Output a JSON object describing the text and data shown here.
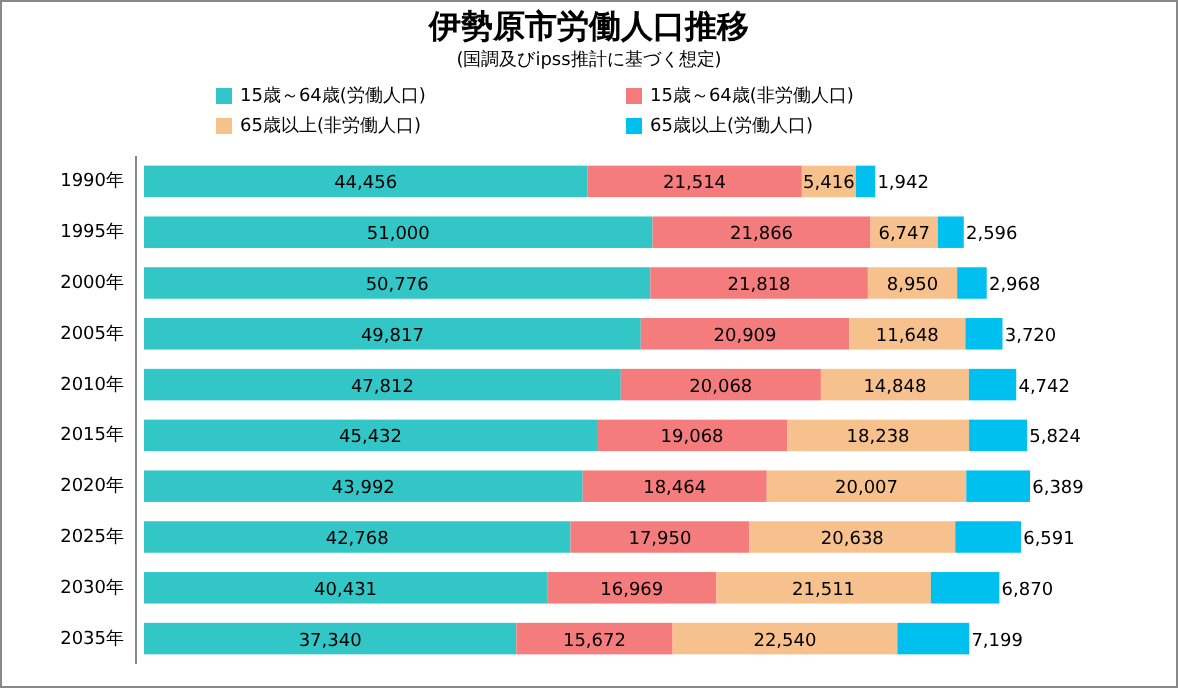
{
  "chart_data": {
    "type": "bar",
    "orientation": "horizontal",
    "stacked": true,
    "title": "伊勢原市労働人口推移",
    "subtitle": "(国調及びipss推計に基づく想定)",
    "legend": "top",
    "categories": [
      "1990年",
      "1995年",
      "2000年",
      "2005年",
      "2010年",
      "2015年",
      "2020年",
      "2025年",
      "2030年",
      "2035年"
    ],
    "series": [
      {
        "name": "15歳～64歳(労働人口)",
        "color": "#33c6c6",
        "values": [
          44456,
          51000,
          50776,
          49817,
          47812,
          45432,
          43992,
          42768,
          40431,
          37340
        ],
        "value_labels": [
          "44,456",
          "51,000",
          "50,776",
          "49,817",
          "47,812",
          "45,432",
          "43,992",
          "42,768",
          "40,431",
          "37,340"
        ]
      },
      {
        "name": "15歳～64歳(非労働人口)",
        "color": "#f47c7c",
        "values": [
          21514,
          21866,
          21818,
          20909,
          20068,
          19068,
          18464,
          17950,
          16969,
          15672
        ],
        "value_labels": [
          "21,514",
          "21,866",
          "21,818",
          "20,909",
          "20,068",
          "19,068",
          "18,464",
          "17,950",
          "16,969",
          "15,672"
        ]
      },
      {
        "name": "65歳以上(非労働人口)",
        "color": "#f7c18d",
        "values": [
          5416,
          6747,
          8950,
          11648,
          14848,
          18238,
          20007,
          20638,
          21511,
          22540
        ],
        "value_labels": [
          "5,416",
          "6,747",
          "8,950",
          "11,648",
          "14,848",
          "18,238",
          "20,007",
          "20,638",
          "21,511",
          "22,540"
        ]
      },
      {
        "name": "65歳以上(労働人口)",
        "color": "#00c0f0",
        "values": [
          1942,
          2596,
          2968,
          3720,
          4742,
          5824,
          6389,
          6591,
          6870,
          7199
        ],
        "value_labels": [
          "1,942",
          "2,596",
          "2,968",
          "3,720",
          "4,742",
          "5,824",
          "6,389",
          "6,591",
          "6,870",
          "7,199"
        ]
      }
    ]
  }
}
